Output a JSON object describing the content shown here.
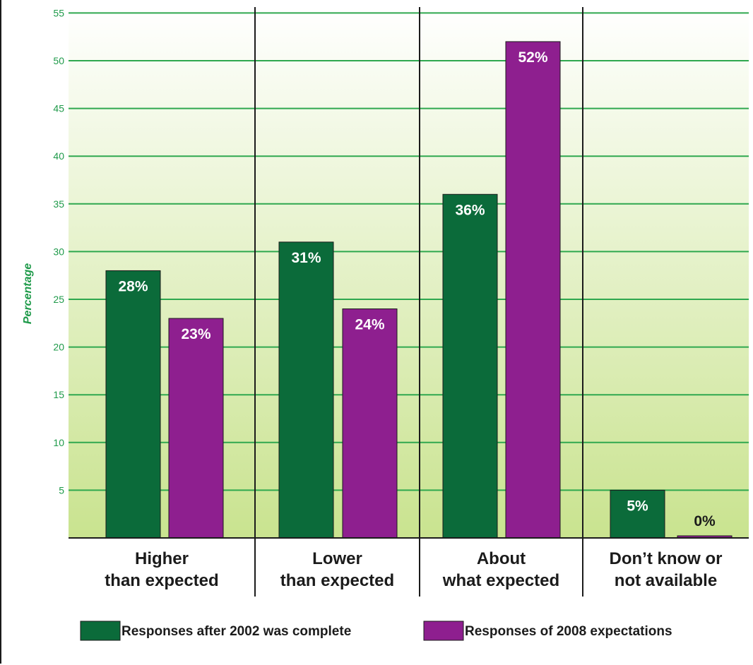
{
  "chart_data": {
    "type": "bar",
    "ylabel": "Percentage",
    "ylim": [
      0,
      55
    ],
    "yticks": [
      5,
      10,
      15,
      20,
      25,
      30,
      35,
      40,
      45,
      50,
      55
    ],
    "grid": true,
    "legend_placement": "bottom",
    "categories": [
      [
        "Higher",
        "than expected"
      ],
      [
        "Lower",
        "than expected"
      ],
      [
        "About",
        "what expected"
      ],
      [
        "Don’t know or",
        "not available"
      ]
    ],
    "series": [
      {
        "name": "Responses after 2002 was complete",
        "color": "#0b6b3a",
        "values": [
          28,
          31,
          36,
          5
        ],
        "labels": [
          "28%",
          "31%",
          "36%",
          "5%"
        ]
      },
      {
        "name": "Responses of 2008 expectations",
        "color": "#8e1f8f",
        "values": [
          23,
          24,
          52,
          0
        ],
        "labels": [
          "23%",
          "24%",
          "52%",
          "0%"
        ]
      }
    ],
    "colors": {
      "gridline": "#2fa84f",
      "background_top": "#ffffff",
      "background_bottom": "#c9e38f",
      "tick_text": "#1f9a4a",
      "axis": "#1b1b1b"
    }
  }
}
